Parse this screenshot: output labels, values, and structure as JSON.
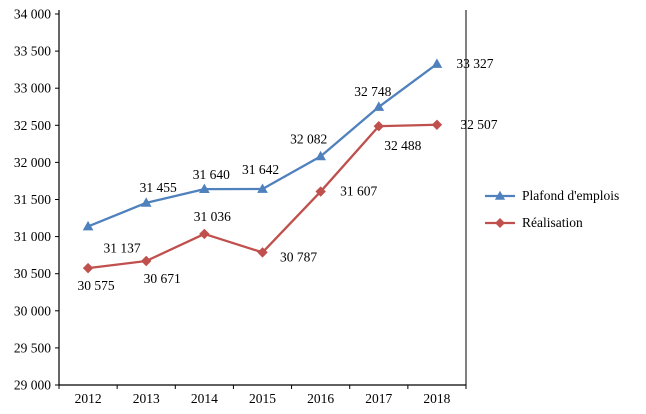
{
  "chart_data": {
    "type": "line",
    "title": "",
    "xlabel": "",
    "ylabel": "",
    "grid": false,
    "legend_position": "right",
    "categories": [
      "2012",
      "2013",
      "2014",
      "2015",
      "2016",
      "2017",
      "2018"
    ],
    "series": [
      {
        "name": "Plafond d'emplois",
        "color": "#4F81BD",
        "marker": "triangle",
        "values": [
          31137,
          31455,
          31640,
          31642,
          32082,
          32748,
          33327
        ],
        "labels": [
          "31 137",
          "31 455",
          "31 640",
          "31 642",
          "32 082",
          "32 748",
          "33 327"
        ]
      },
      {
        "name": "Réalisation",
        "color": "#C0504D",
        "marker": "diamond",
        "values": [
          30575,
          30671,
          31036,
          30787,
          31607,
          32488,
          32507
        ],
        "labels": [
          "30 575",
          "30 671",
          "31 036",
          "30 787",
          "31 607",
          "32 488",
          "32 507"
        ]
      }
    ],
    "ylim": [
      29000,
      34000
    ],
    "ytick_step": 500,
    "ytick_labels": [
      "29 000",
      "29 500",
      "30 000",
      "30 500",
      "31 000",
      "31 500",
      "32 000",
      "32 500",
      "33 000",
      "33 500",
      "34 000"
    ],
    "axis_color": "#000000",
    "text_color": "#000000"
  }
}
